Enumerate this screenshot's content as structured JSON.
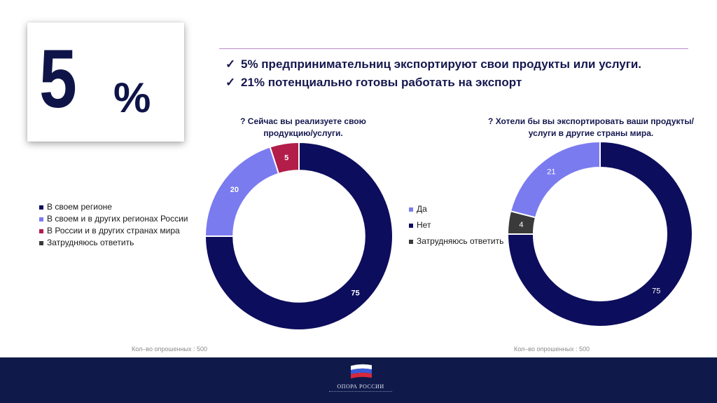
{
  "big_stat": {
    "number": "5",
    "percent": "%"
  },
  "headline": {
    "items": [
      "5% предпринимательниц экспортируют свои продукты или услуги.",
      "21% потенциально готовы работать на экспорт"
    ]
  },
  "footer": {
    "logo_text": "ОПОРА РОССИИ"
  },
  "chart_data": [
    {
      "type": "pie",
      "title": "? Сейчас вы реализуете свою продукцию/услуги.",
      "categories": [
        "В своем регионе",
        "В своем и в других регионах России",
        "В России и в других странах мира",
        "Затрудняюсь ответить"
      ],
      "values": [
        75,
        20,
        5,
        0
      ],
      "colors": [
        "#0d0d5e",
        "#7b7bf0",
        "#b21e49",
        "#3a3a3a"
      ],
      "data_labels": [
        "75",
        "20",
        "5",
        ""
      ],
      "legend_position": "left",
      "note": "Кол–во опрошенных : 500"
    },
    {
      "type": "pie",
      "title": "? Хотели бы вы экспортировать ваши продукты/услуги в другие страны мира.",
      "categories": [
        "Да",
        "Нет",
        "Затрудняюсь ответить"
      ],
      "values": [
        21,
        75,
        4
      ],
      "colors": [
        "#7b7bf0",
        "#0d0d5e",
        "#3a3a3a"
      ],
      "data_labels": [
        "21",
        "75",
        "4"
      ],
      "legend_position": "left",
      "note": "Кол–во опрошенных : 500"
    }
  ]
}
